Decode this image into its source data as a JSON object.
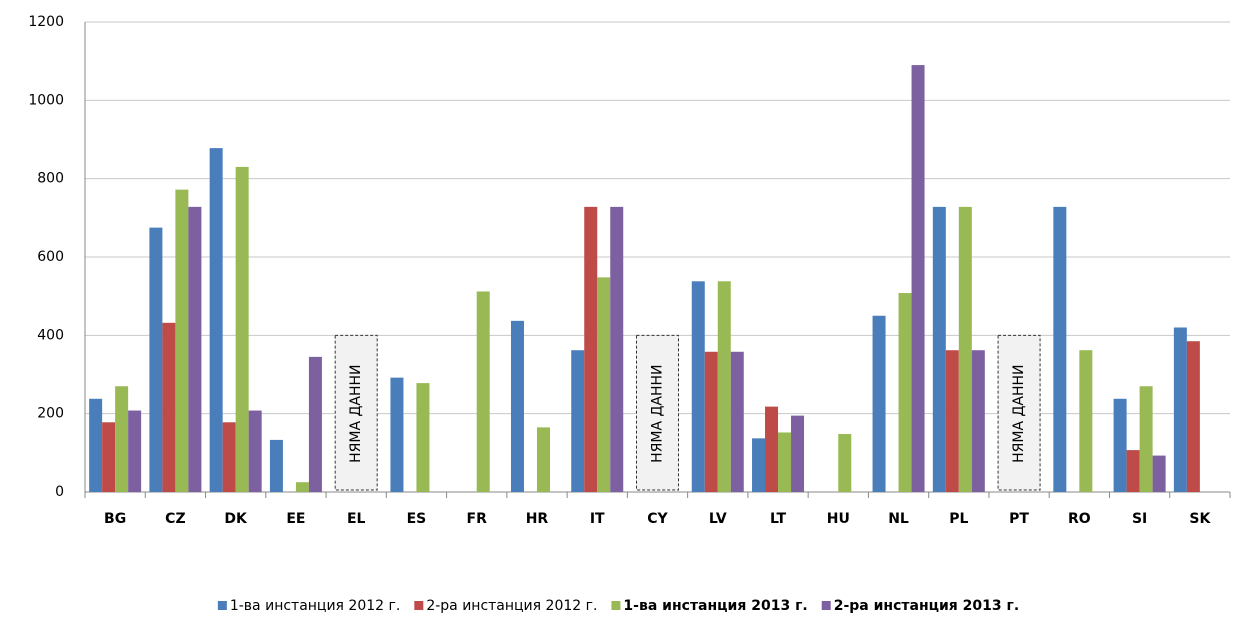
{
  "chart_data": {
    "type": "bar",
    "categories": [
      "BG",
      "CZ",
      "DK",
      "EE",
      "EL",
      "ES",
      "FR",
      "HR",
      "IT",
      "CY",
      "LV",
      "LT",
      "HU",
      "NL",
      "PL",
      "PT",
      "RO",
      "SI",
      "SK"
    ],
    "series": [
      {
        "name": "1-ва инстанция 2012 г.",
        "color": "#4a7ebb",
        "bold": false,
        "values": [
          238,
          675,
          878,
          133,
          null,
          292,
          null,
          437,
          362,
          null,
          538,
          137,
          null,
          450,
          728,
          null,
          728,
          238,
          420
        ]
      },
      {
        "name": "2-ра инстанция 2012 г.",
        "color": "#be4b48",
        "bold": false,
        "values": [
          178,
          432,
          178,
          null,
          null,
          null,
          null,
          null,
          728,
          null,
          358,
          218,
          null,
          null,
          362,
          null,
          null,
          107,
          385
        ]
      },
      {
        "name": "1-ва инстанция 2013 г.",
        "color": "#98b954",
        "bold": true,
        "values": [
          270,
          772,
          830,
          25,
          null,
          278,
          512,
          165,
          548,
          null,
          538,
          152,
          148,
          508,
          728,
          null,
          362,
          270,
          null
        ]
      },
      {
        "name": "2-ра инстанция 2013 г.",
        "color": "#7d60a0",
        "bold": true,
        "values": [
          208,
          728,
          208,
          345,
          null,
          null,
          null,
          null,
          728,
          null,
          358,
          195,
          null,
          1090,
          362,
          null,
          null,
          93,
          null
        ]
      }
    ],
    "annotations": [
      {
        "category": "EL",
        "text": "НЯМА ДАННИ"
      },
      {
        "category": "CY",
        "text": "НЯМА ДАННИ"
      },
      {
        "category": "PT",
        "text": "НЯМА ДАННИ"
      }
    ],
    "ylim": [
      0,
      1200
    ],
    "yticks": [
      0,
      200,
      400,
      600,
      800,
      1000,
      1200
    ],
    "grid": true,
    "legend": "bottom"
  }
}
